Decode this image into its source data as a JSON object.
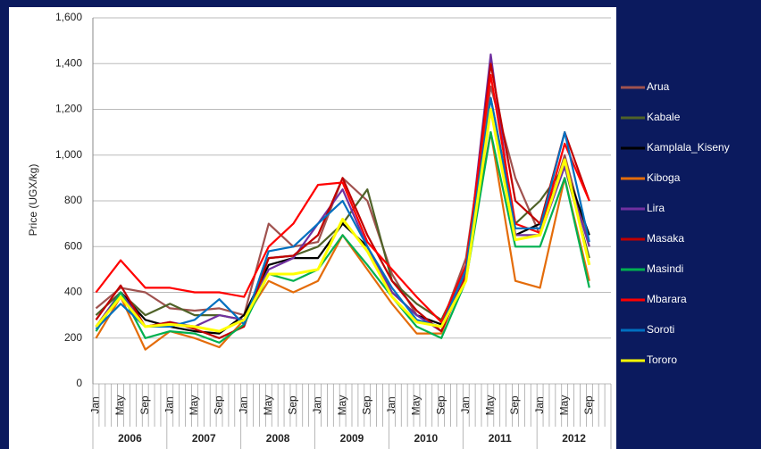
{
  "chart_data": {
    "type": "line",
    "y_label": "Price (UGX/kg)",
    "categories": [
      "Jan",
      "May",
      "Sep",
      "Jan",
      "May",
      "Sep",
      "Jan",
      "May",
      "Sep",
      "Jan",
      "May",
      "Sep",
      "Jan",
      "May",
      "Sep",
      "Jan",
      "May",
      "Sep",
      "Jan",
      "May",
      "Sep"
    ],
    "x_groups": [
      "2006",
      "2007",
      "2008",
      "2009",
      "2010",
      "2011",
      "2012"
    ],
    "ylim": [
      0,
      1600
    ],
    "yticks": [
      0,
      200,
      400,
      600,
      800,
      {
        "value": 1000,
        "label": "1,000"
      },
      {
        "value": 1200,
        "label": "1,200"
      },
      {
        "value": 1400,
        "label": "1,400"
      },
      {
        "value": 1600,
        "label": "1,600"
      }
    ],
    "grid": true,
    "legend": "right",
    "series": [
      {
        "name": "Arua",
        "color": "#a0524f",
        "values": [
          330,
          420,
          400,
          330,
          320,
          330,
          300,
          700,
          600,
          620,
          900,
          800,
          480,
          300,
          260,
          550,
          1300,
          900,
          650,
          1000,
          600
        ]
      },
      {
        "name": "Kabale",
        "color": "#4f6228",
        "values": [
          300,
          400,
          300,
          350,
          300,
          300,
          280,
          550,
          560,
          600,
          700,
          850,
          450,
          350,
          280,
          500,
          1250,
          700,
          800,
          950,
          550
        ]
      },
      {
        "name": "Kamplala_Kiseny",
        "color": "#000000",
        "values": [
          250,
          400,
          280,
          250,
          230,
          220,
          300,
          520,
          550,
          550,
          700,
          600,
          400,
          300,
          260,
          500,
          1200,
          650,
          700,
          950,
          650
        ]
      },
      {
        "name": "Kiboga",
        "color": "#e46c0a",
        "values": [
          200,
          380,
          150,
          230,
          200,
          160,
          280,
          450,
          400,
          450,
          650,
          500,
          350,
          220,
          220,
          500,
          1100,
          450,
          420,
          900,
          450
        ]
      },
      {
        "name": "Lira",
        "color": "#7030a0",
        "values": [
          250,
          400,
          250,
          270,
          250,
          300,
          280,
          500,
          550,
          700,
          850,
          600,
          400,
          300,
          230,
          480,
          1440,
          650,
          650,
          950,
          600
        ]
      },
      {
        "name": "Masaka",
        "color": "#c00000",
        "values": [
          280,
          430,
          250,
          270,
          240,
          200,
          250,
          550,
          560,
          650,
          900,
          650,
          450,
          320,
          230,
          470,
          1400,
          800,
          700,
          1100,
          800
        ]
      },
      {
        "name": "Masindi",
        "color": "#00b050",
        "values": [
          230,
          400,
          200,
          230,
          220,
          180,
          260,
          480,
          450,
          500,
          650,
          520,
          380,
          250,
          200,
          450,
          1100,
          600,
          600,
          900,
          420
        ]
      },
      {
        "name": "Mbarara",
        "color": "#ff0000",
        "values": [
          400,
          540,
          420,
          420,
          400,
          400,
          380,
          600,
          700,
          870,
          880,
          620,
          500,
          380,
          270,
          520,
          1350,
          700,
          660,
          1050,
          800
        ]
      },
      {
        "name": "Soroti",
        "color": "#0070c0",
        "values": [
          240,
          350,
          250,
          250,
          280,
          370,
          260,
          580,
          600,
          700,
          800,
          600,
          420,
          280,
          250,
          500,
          1250,
          680,
          680,
          1100,
          620
        ]
      },
      {
        "name": "Tororo",
        "color": "#ffff00",
        "values": [
          250,
          380,
          250,
          260,
          250,
          230,
          280,
          480,
          480,
          500,
          720,
          580,
          380,
          270,
          250,
          450,
          1200,
          630,
          650,
          980,
          520
        ]
      }
    ]
  }
}
